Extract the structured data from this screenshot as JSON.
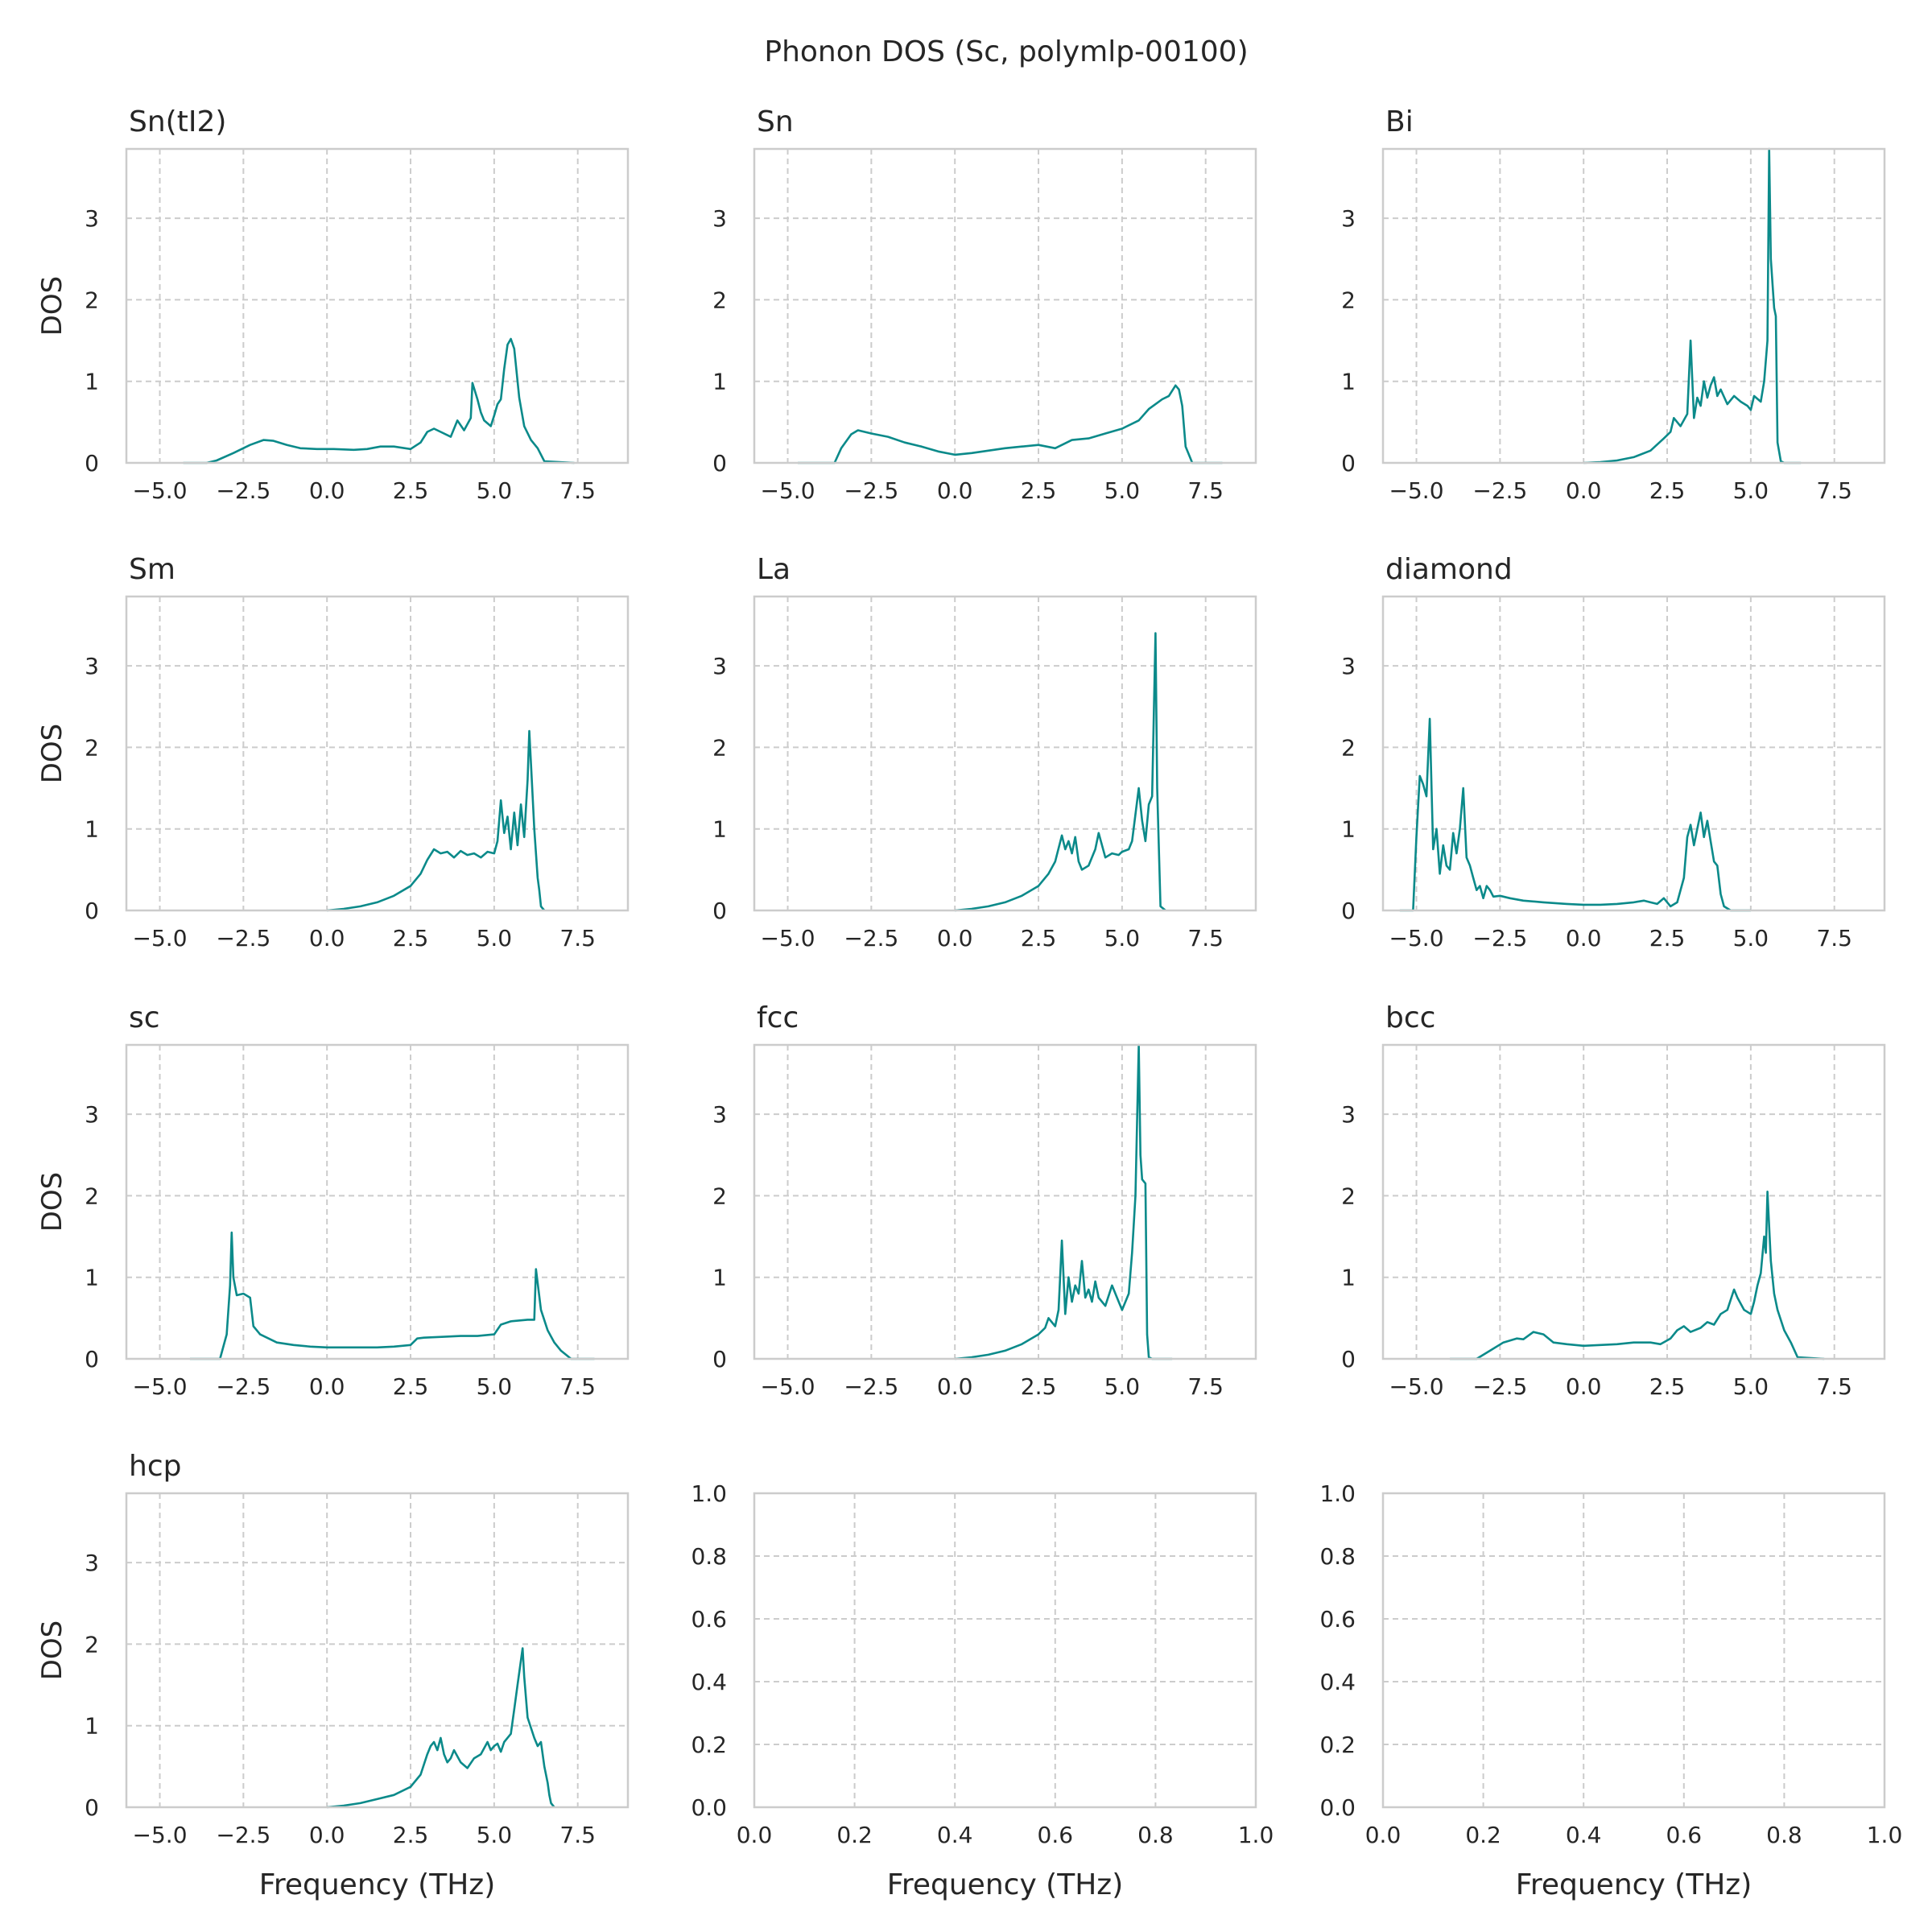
{
  "figure": {
    "title": "Phonon DOS (Sc, polymlp-00100)"
  },
  "colors": {
    "line": "#0b8a8a",
    "grid": "#cccccc",
    "frame": "#cccccc",
    "text": "#262626"
  },
  "chart_data": [
    {
      "type": "line",
      "title": "Sn(tI2)",
      "xlabel": "",
      "ylabel": "DOS",
      "xlim": [
        -6,
        9
      ],
      "ylim": [
        0,
        3.85
      ],
      "xticks": [
        "−5.0",
        "−2.5",
        "0.0",
        "2.5",
        "5.0",
        "7.5"
      ],
      "yticks": [
        "0",
        "1",
        "2",
        "3"
      ],
      "grid": true,
      "series": [
        {
          "x": [
            -4.3,
            -3.6,
            -3.3,
            -2.8,
            -2.3,
            -1.9,
            -1.6,
            -1.2,
            -0.8,
            -0.3,
            0.2,
            0.8,
            1.2,
            1.6,
            2.0,
            2.5,
            2.8,
            3.0,
            3.2,
            3.4,
            3.7,
            3.9,
            4.1,
            4.3,
            4.35,
            4.5,
            4.6,
            4.7,
            4.9,
            5.0,
            5.1,
            5.2,
            5.3,
            5.4,
            5.5,
            5.6,
            5.75,
            5.9,
            6.1,
            6.3,
            6.5,
            7.4
          ],
          "y": [
            0,
            0,
            0.03,
            0.12,
            0.22,
            0.28,
            0.27,
            0.22,
            0.18,
            0.17,
            0.17,
            0.16,
            0.17,
            0.2,
            0.2,
            0.17,
            0.25,
            0.38,
            0.42,
            0.38,
            0.32,
            0.52,
            0.4,
            0.55,
            0.98,
            0.78,
            0.62,
            0.52,
            0.45,
            0.58,
            0.72,
            0.78,
            1.15,
            1.45,
            1.52,
            1.4,
            0.8,
            0.45,
            0.28,
            0.18,
            0.02,
            0
          ]
        }
      ]
    },
    {
      "type": "line",
      "title": "Sn",
      "xlabel": "",
      "ylabel": "",
      "xlim": [
        -6,
        9
      ],
      "ylim": [
        0,
        3.85
      ],
      "xticks": [
        "−5.0",
        "−2.5",
        "0.0",
        "2.5",
        "5.0",
        "7.5"
      ],
      "yticks": [
        "0",
        "1",
        "2",
        "3"
      ],
      "grid": true,
      "series": [
        {
          "x": [
            -4.7,
            -3.6,
            -3.4,
            -3.1,
            -2.9,
            -2.5,
            -2.0,
            -1.5,
            -1.0,
            -0.5,
            0.0,
            0.5,
            1.0,
            1.5,
            2.0,
            2.5,
            3.0,
            3.5,
            4.0,
            4.5,
            5.0,
            5.5,
            5.8,
            6.0,
            6.2,
            6.4,
            6.6,
            6.7,
            6.8,
            6.9,
            7.1,
            8.0
          ],
          "y": [
            0,
            0,
            0.18,
            0.35,
            0.4,
            0.36,
            0.32,
            0.25,
            0.2,
            0.14,
            0.1,
            0.12,
            0.15,
            0.18,
            0.2,
            0.22,
            0.18,
            0.28,
            0.3,
            0.36,
            0.42,
            0.52,
            0.66,
            0.72,
            0.78,
            0.82,
            0.95,
            0.9,
            0.7,
            0.2,
            0,
            0
          ]
        }
      ]
    },
    {
      "type": "line",
      "title": "Bi",
      "xlabel": "",
      "ylabel": "",
      "xlim": [
        -6,
        9
      ],
      "ylim": [
        0,
        3.85
      ],
      "xticks": [
        "−5.0",
        "−2.5",
        "0.0",
        "2.5",
        "5.0",
        "7.5"
      ],
      "yticks": [
        "0",
        "1",
        "2",
        "3"
      ],
      "grid": true,
      "series": [
        {
          "x": [
            0.0,
            0.5,
            1.0,
            1.5,
            2.0,
            2.4,
            2.6,
            2.7,
            2.9,
            3.1,
            3.2,
            3.3,
            3.4,
            3.5,
            3.6,
            3.7,
            3.8,
            3.9,
            4.0,
            4.1,
            4.3,
            4.5,
            4.7,
            4.9,
            5.0,
            5.1,
            5.3,
            5.4,
            5.5,
            5.55,
            5.6,
            5.7,
            5.75,
            5.8,
            5.9,
            6.0,
            6.5
          ],
          "y": [
            0,
            0.01,
            0.03,
            0.07,
            0.15,
            0.3,
            0.38,
            0.55,
            0.45,
            0.6,
            1.5,
            0.55,
            0.8,
            0.7,
            1.0,
            0.8,
            0.95,
            1.05,
            0.82,
            0.9,
            0.72,
            0.82,
            0.75,
            0.7,
            0.65,
            0.82,
            0.75,
            1.0,
            1.5,
            3.85,
            2.5,
            1.9,
            1.8,
            0.25,
            0.02,
            0,
            0
          ]
        }
      ]
    },
    {
      "type": "line",
      "title": "Sm",
      "xlabel": "",
      "ylabel": "DOS",
      "xlim": [
        -6,
        9
      ],
      "ylim": [
        0,
        3.85
      ],
      "xticks": [
        "−5.0",
        "−2.5",
        "0.0",
        "2.5",
        "5.0",
        "7.5"
      ],
      "yticks": [
        "0",
        "1",
        "2",
        "3"
      ],
      "grid": true,
      "series": [
        {
          "x": [
            0.0,
            0.5,
            1.0,
            1.5,
            2.0,
            2.5,
            2.8,
            3.0,
            3.2,
            3.4,
            3.6,
            3.8,
            4.0,
            4.2,
            4.4,
            4.6,
            4.8,
            5.0,
            5.1,
            5.2,
            5.3,
            5.4,
            5.5,
            5.6,
            5.7,
            5.8,
            5.9,
            6.0,
            6.05,
            6.1,
            6.2,
            6.3,
            6.35,
            6.4,
            6.5
          ],
          "y": [
            0,
            0.02,
            0.05,
            0.1,
            0.18,
            0.3,
            0.45,
            0.62,
            0.75,
            0.7,
            0.72,
            0.65,
            0.73,
            0.68,
            0.7,
            0.65,
            0.72,
            0.7,
            0.85,
            1.35,
            0.95,
            1.15,
            0.75,
            1.2,
            0.8,
            1.3,
            0.9,
            1.6,
            2.2,
            1.8,
            1.0,
            0.4,
            0.25,
            0.05,
            0
          ]
        }
      ]
    },
    {
      "type": "line",
      "title": "La",
      "xlabel": "",
      "ylabel": "",
      "xlim": [
        -6,
        9
      ],
      "ylim": [
        0,
        3.85
      ],
      "xticks": [
        "−5.0",
        "−2.5",
        "0.0",
        "2.5",
        "5.0",
        "7.5"
      ],
      "yticks": [
        "0",
        "1",
        "2",
        "3"
      ],
      "grid": true,
      "series": [
        {
          "x": [
            0.0,
            0.5,
            1.0,
            1.5,
            2.0,
            2.5,
            2.8,
            3.0,
            3.2,
            3.3,
            3.4,
            3.5,
            3.6,
            3.7,
            3.8,
            4.0,
            4.2,
            4.3,
            4.5,
            4.7,
            4.9,
            5.0,
            5.2,
            5.3,
            5.5,
            5.6,
            5.7,
            5.8,
            5.9,
            6.0,
            6.05,
            6.15,
            6.3
          ],
          "y": [
            0,
            0.02,
            0.05,
            0.1,
            0.18,
            0.3,
            0.45,
            0.6,
            0.92,
            0.75,
            0.85,
            0.7,
            0.9,
            0.6,
            0.5,
            0.55,
            0.75,
            0.95,
            0.65,
            0.7,
            0.68,
            0.72,
            0.75,
            0.85,
            1.5,
            1.1,
            0.85,
            1.3,
            1.4,
            3.4,
            1.5,
            0.05,
            0
          ]
        }
      ]
    },
    {
      "type": "line",
      "title": "diamond",
      "xlabel": "",
      "ylabel": "",
      "xlim": [
        -6,
        9
      ],
      "ylim": [
        0,
        3.85
      ],
      "xticks": [
        "−5.0",
        "−2.5",
        "0.0",
        "2.5",
        "5.0",
        "7.5"
      ],
      "yticks": [
        "0",
        "1",
        "2",
        "3"
      ],
      "grid": true,
      "series": [
        {
          "x": [
            -5.5,
            -5.1,
            -5.0,
            -4.9,
            -4.8,
            -4.7,
            -4.6,
            -4.5,
            -4.4,
            -4.3,
            -4.2,
            -4.1,
            -4.0,
            -3.9,
            -3.8,
            -3.7,
            -3.6,
            -3.5,
            -3.4,
            -3.3,
            -3.2,
            -3.1,
            -3.0,
            -2.9,
            -2.8,
            -2.7,
            -2.5,
            -2.2,
            -1.8,
            -1.2,
            -0.5,
            0.0,
            0.5,
            1.0,
            1.5,
            1.8,
            2.0,
            2.2,
            2.4,
            2.6,
            2.8,
            3.0,
            3.1,
            3.2,
            3.3,
            3.4,
            3.5,
            3.6,
            3.7,
            3.8,
            3.9,
            4.0,
            4.1,
            4.2,
            4.4,
            5.0
          ],
          "y": [
            0,
            0,
            0.9,
            1.65,
            1.55,
            1.4,
            2.35,
            0.75,
            1.0,
            0.45,
            0.8,
            0.55,
            0.5,
            0.95,
            0.7,
            1.0,
            1.5,
            0.65,
            0.55,
            0.4,
            0.25,
            0.3,
            0.15,
            0.3,
            0.25,
            0.17,
            0.18,
            0.15,
            0.12,
            0.1,
            0.08,
            0.07,
            0.07,
            0.08,
            0.1,
            0.12,
            0.1,
            0.08,
            0.15,
            0.05,
            0.1,
            0.4,
            0.9,
            1.05,
            0.8,
            1.0,
            1.2,
            0.9,
            1.1,
            0.85,
            0.6,
            0.55,
            0.2,
            0.05,
            0,
            0
          ]
        }
      ]
    },
    {
      "type": "line",
      "title": "sc",
      "xlabel": "",
      "ylabel": "DOS",
      "xlim": [
        -6,
        9
      ],
      "ylim": [
        0,
        3.85
      ],
      "xticks": [
        "−5.0",
        "−2.5",
        "0.0",
        "2.5",
        "5.0",
        "7.5"
      ],
      "yticks": [
        "0",
        "1",
        "2",
        "3"
      ],
      "grid": true,
      "series": [
        {
          "x": [
            -4.1,
            -3.2,
            -3.0,
            -2.9,
            -2.85,
            -2.8,
            -2.7,
            -2.5,
            -2.3,
            -2.2,
            -2.0,
            -1.5,
            -1.0,
            -0.5,
            0.0,
            0.5,
            1.0,
            1.5,
            2.0,
            2.5,
            2.7,
            2.9,
            3.5,
            4.0,
            4.5,
            5.0,
            5.2,
            5.5,
            6.0,
            6.2,
            6.25,
            6.4,
            6.6,
            6.8,
            7.0,
            7.3,
            8.0
          ],
          "y": [
            0,
            0,
            0.3,
            0.9,
            1.55,
            1.0,
            0.78,
            0.8,
            0.75,
            0.4,
            0.3,
            0.2,
            0.17,
            0.15,
            0.14,
            0.14,
            0.14,
            0.14,
            0.15,
            0.17,
            0.25,
            0.26,
            0.27,
            0.28,
            0.28,
            0.3,
            0.42,
            0.46,
            0.48,
            0.48,
            1.1,
            0.6,
            0.35,
            0.2,
            0.1,
            0,
            0
          ]
        }
      ]
    },
    {
      "type": "line",
      "title": "fcc",
      "xlabel": "",
      "ylabel": "",
      "xlim": [
        -6,
        9
      ],
      "ylim": [
        0,
        3.85
      ],
      "xticks": [
        "−5.0",
        "−2.5",
        "0.0",
        "2.5",
        "5.0",
        "7.5"
      ],
      "yticks": [
        "0",
        "1",
        "2",
        "3"
      ],
      "grid": true,
      "series": [
        {
          "x": [
            0.0,
            0.5,
            1.0,
            1.5,
            2.0,
            2.5,
            2.7,
            2.8,
            3.0,
            3.1,
            3.2,
            3.3,
            3.4,
            3.5,
            3.6,
            3.7,
            3.8,
            3.9,
            4.0,
            4.1,
            4.2,
            4.3,
            4.5,
            4.7,
            4.9,
            5.0,
            5.2,
            5.3,
            5.4,
            5.5,
            5.55,
            5.6,
            5.7,
            5.75,
            5.8,
            5.9,
            6.5
          ],
          "y": [
            0,
            0.02,
            0.05,
            0.1,
            0.18,
            0.3,
            0.38,
            0.5,
            0.4,
            0.6,
            1.45,
            0.55,
            1.0,
            0.7,
            0.9,
            0.8,
            1.2,
            0.75,
            0.85,
            0.7,
            0.95,
            0.75,
            0.65,
            0.9,
            0.7,
            0.6,
            0.8,
            1.3,
            2.0,
            3.85,
            2.5,
            2.2,
            2.15,
            0.3,
            0.02,
            0,
            0
          ]
        }
      ]
    },
    {
      "type": "line",
      "title": "bcc",
      "xlabel": "",
      "ylabel": "",
      "xlim": [
        -6,
        9
      ],
      "ylim": [
        0,
        3.85
      ],
      "xticks": [
        "−5.0",
        "−2.5",
        "0.0",
        "2.5",
        "5.0",
        "7.5"
      ],
      "yticks": [
        "0",
        "1",
        "2",
        "3"
      ],
      "grid": true,
      "series": [
        {
          "x": [
            -4.0,
            -3.2,
            -2.8,
            -2.4,
            -2.0,
            -1.8,
            -1.5,
            -1.2,
            -0.9,
            -0.5,
            0.0,
            0.5,
            1.0,
            1.5,
            2.0,
            2.3,
            2.6,
            2.8,
            3.0,
            3.2,
            3.5,
            3.7,
            3.9,
            4.1,
            4.3,
            4.5,
            4.6,
            4.8,
            5.0,
            5.1,
            5.2,
            5.3,
            5.4,
            5.45,
            5.5,
            5.6,
            5.7,
            5.8,
            6.0,
            6.2,
            6.4,
            7.2
          ],
          "y": [
            0,
            0,
            0.1,
            0.2,
            0.25,
            0.24,
            0.33,
            0.3,
            0.2,
            0.18,
            0.16,
            0.17,
            0.18,
            0.2,
            0.2,
            0.18,
            0.25,
            0.35,
            0.4,
            0.33,
            0.38,
            0.45,
            0.42,
            0.55,
            0.6,
            0.85,
            0.75,
            0.6,
            0.55,
            0.7,
            0.9,
            1.05,
            1.5,
            1.3,
            2.05,
            1.2,
            0.8,
            0.6,
            0.35,
            0.2,
            0.02,
            0
          ]
        }
      ]
    },
    {
      "type": "line",
      "title": "hcp",
      "xlabel": "Frequency (THz)",
      "ylabel": "DOS",
      "xlim": [
        -6,
        9
      ],
      "ylim": [
        0,
        3.85
      ],
      "xticks": [
        "−5.0",
        "−2.5",
        "0.0",
        "2.5",
        "5.0",
        "7.5"
      ],
      "yticks": [
        "0",
        "1",
        "2",
        "3"
      ],
      "grid": true,
      "series": [
        {
          "x": [
            0.0,
            0.5,
            1.0,
            1.5,
            2.0,
            2.5,
            2.8,
            3.0,
            3.1,
            3.2,
            3.3,
            3.4,
            3.5,
            3.6,
            3.7,
            3.8,
            4.0,
            4.2,
            4.4,
            4.6,
            4.8,
            4.9,
            5.0,
            5.1,
            5.2,
            5.3,
            5.5,
            5.6,
            5.7,
            5.8,
            5.85,
            5.9,
            6.0,
            6.2,
            6.3,
            6.4,
            6.5,
            6.6,
            6.65,
            6.7,
            6.8
          ],
          "y": [
            0,
            0.02,
            0.05,
            0.1,
            0.15,
            0.25,
            0.4,
            0.65,
            0.75,
            0.8,
            0.7,
            0.85,
            0.65,
            0.55,
            0.6,
            0.7,
            0.55,
            0.48,
            0.6,
            0.65,
            0.8,
            0.7,
            0.75,
            0.78,
            0.68,
            0.8,
            0.9,
            1.2,
            1.5,
            1.8,
            1.95,
            1.6,
            1.1,
            0.85,
            0.75,
            0.8,
            0.5,
            0.3,
            0.15,
            0.05,
            0
          ]
        }
      ]
    },
    {
      "type": "line",
      "title": "",
      "xlabel": "Frequency (THz)",
      "ylabel": "",
      "xlim": [
        0,
        1
      ],
      "ylim": [
        0,
        1
      ],
      "xticks": [
        "0.0",
        "0.2",
        "0.4",
        "0.6",
        "0.8",
        "1.0"
      ],
      "yticks": [
        "0.0",
        "0.2",
        "0.4",
        "0.6",
        "0.8",
        "1.0"
      ],
      "grid": true,
      "series": []
    },
    {
      "type": "line",
      "title": "",
      "xlabel": "Frequency (THz)",
      "ylabel": "",
      "xlim": [
        0,
        1
      ],
      "ylim": [
        0,
        1
      ],
      "xticks": [
        "0.0",
        "0.2",
        "0.4",
        "0.6",
        "0.8",
        "1.0"
      ],
      "yticks": [
        "0.0",
        "0.2",
        "0.4",
        "0.6",
        "0.8",
        "1.0"
      ],
      "grid": true,
      "series": []
    }
  ]
}
